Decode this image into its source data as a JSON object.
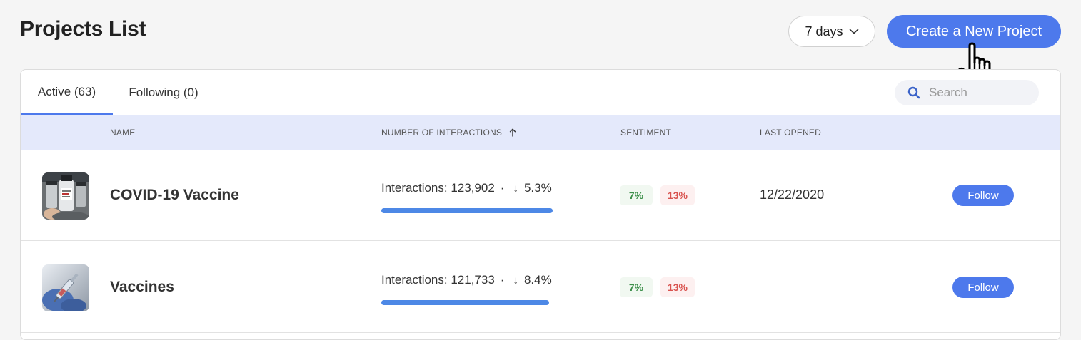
{
  "page_title": "Projects List",
  "period_select": {
    "value": "7 days"
  },
  "create_button": "Create a New Project",
  "tabs": [
    {
      "label": "Active (63)",
      "active": true
    },
    {
      "label": "Following (0)",
      "active": false
    }
  ],
  "search": {
    "placeholder": "Search"
  },
  "columns": {
    "name": "NAME",
    "interactions": "NUMBER OF INTERACTIONS",
    "sentiment": "SENTIMENT",
    "last_opened": "LAST OPENED"
  },
  "sort_indicator_icon": "arrow-up-icon",
  "accent_color": "#4d79ec",
  "rows": [
    {
      "name": "COVID-19 Vaccine",
      "thumbnail_icon": "vaccine-vials-thumbnail",
      "interactions_text": "Interactions: 123,902",
      "separator": "·",
      "trend_arrow": "↓",
      "change": "5.3%",
      "interaction_share": 0.98,
      "sentiment_positive": "7%",
      "sentiment_negative": "13%",
      "last_opened": "12/22/2020",
      "action": "Follow"
    },
    {
      "name": "Vaccines",
      "thumbnail_icon": "syringe-glove-thumbnail",
      "interactions_text": "Interactions: 121,733",
      "separator": "·",
      "trend_arrow": "↓",
      "change": "8.4%",
      "interaction_share": 0.96,
      "sentiment_positive": "7%",
      "sentiment_negative": "13%",
      "last_opened": "",
      "action": "Follow"
    }
  ]
}
